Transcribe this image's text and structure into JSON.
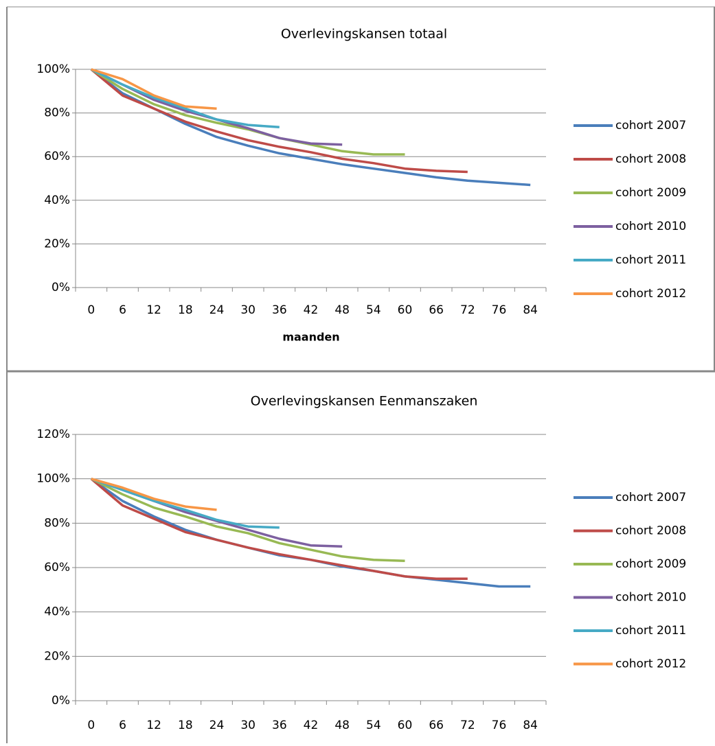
{
  "chart_data": [
    {
      "type": "line",
      "title": "Overlevingskansen totaal",
      "x_label": "maanden",
      "categories": [
        "0",
        "6",
        "12",
        "18",
        "24",
        "30",
        "36",
        "42",
        "48",
        "54",
        "60",
        "66",
        "72",
        "76",
        "84"
      ],
      "ylim": [
        0,
        100
      ],
      "yticks": [
        {
          "value": 0,
          "label": "0%"
        },
        {
          "value": 20,
          "label": "20%"
        },
        {
          "value": 40,
          "label": "40%"
        },
        {
          "value": 60,
          "label": "60%"
        },
        {
          "value": 80,
          "label": "80%"
        },
        {
          "value": 100,
          "label": "100%"
        }
      ],
      "grid": true,
      "legend": "right",
      "series": [
        {
          "name": "cohort 2007",
          "color": "#4a7ebb",
          "values": [
            100,
            89,
            82,
            75,
            69,
            65,
            61.5,
            59,
            56.5,
            54.5,
            52.5,
            50.5,
            49,
            48,
            47
          ]
        },
        {
          "name": "cohort 2008",
          "color": "#be4b48",
          "values": [
            100,
            88,
            82,
            76,
            71.5,
            67.5,
            64.5,
            62,
            59,
            57,
            54.5,
            53.5,
            53,
            null,
            null
          ]
        },
        {
          "name": "cohort 2009",
          "color": "#98b954",
          "values": [
            100,
            91,
            84,
            79,
            75.5,
            72.5,
            68.5,
            65.5,
            62.5,
            61,
            61,
            null,
            null,
            null,
            null
          ]
        },
        {
          "name": "cohort 2010",
          "color": "#7d60a0",
          "values": [
            100,
            93,
            86,
            81,
            77,
            73,
            68.5,
            66,
            65.5,
            null,
            null,
            null,
            null,
            null,
            null
          ]
        },
        {
          "name": "cohort 2011",
          "color": "#46aac5",
          "values": [
            100,
            93,
            87,
            82,
            77,
            74.5,
            73.5,
            null,
            null,
            null,
            null,
            null,
            null,
            null,
            null
          ]
        },
        {
          "name": "cohort 2012",
          "color": "#f79646",
          "values": [
            100,
            95.5,
            88,
            83,
            82,
            null,
            null,
            null,
            null,
            null,
            null,
            null,
            null,
            null,
            null
          ]
        }
      ]
    },
    {
      "type": "line",
      "title": "Overlevingskansen Eenmanszaken",
      "categories": [
        "0",
        "6",
        "12",
        "18",
        "24",
        "30",
        "36",
        "42",
        "48",
        "54",
        "60",
        "66",
        "72",
        "76",
        "84"
      ],
      "ylim": [
        0,
        120
      ],
      "yticks": [
        {
          "value": 0,
          "label": "0%"
        },
        {
          "value": 20,
          "label": "20%"
        },
        {
          "value": 40,
          "label": "40%"
        },
        {
          "value": 60,
          "label": "60%"
        },
        {
          "value": 80,
          "label": "80%"
        },
        {
          "value": 100,
          "label": "100%"
        },
        {
          "value": 120,
          "label": "120%"
        }
      ],
      "grid": true,
      "legend": "right",
      "series": [
        {
          "name": "cohort 2007",
          "color": "#4a7ebb",
          "values": [
            100,
            90,
            83,
            77,
            72.5,
            69,
            65.5,
            63.5,
            60.5,
            58.5,
            56,
            54.5,
            53,
            51.5,
            51.5
          ]
        },
        {
          "name": "cohort 2008",
          "color": "#be4b48",
          "values": [
            100,
            88,
            82,
            76,
            72.5,
            69,
            66,
            63.5,
            61,
            58.5,
            56,
            55,
            55,
            null,
            null
          ]
        },
        {
          "name": "cohort 2009",
          "color": "#98b954",
          "values": [
            100,
            93,
            87,
            83,
            78.5,
            75.5,
            71,
            68,
            65,
            63.5,
            63,
            null,
            null,
            null,
            null
          ]
        },
        {
          "name": "cohort 2010",
          "color": "#7d60a0",
          "values": [
            100,
            95,
            90,
            85,
            81,
            77,
            73,
            70,
            69.5,
            null,
            null,
            null,
            null,
            null,
            null
          ]
        },
        {
          "name": "cohort 2011",
          "color": "#46aac5",
          "values": [
            100,
            95,
            90,
            86,
            81.5,
            78.5,
            78,
            null,
            null,
            null,
            null,
            null,
            null,
            null,
            null
          ]
        },
        {
          "name": "cohort 2012",
          "color": "#f79646",
          "values": [
            100,
            96,
            91,
            87.5,
            86,
            null,
            null,
            null,
            null,
            null,
            null,
            null,
            null,
            null,
            null
          ]
        }
      ]
    }
  ]
}
